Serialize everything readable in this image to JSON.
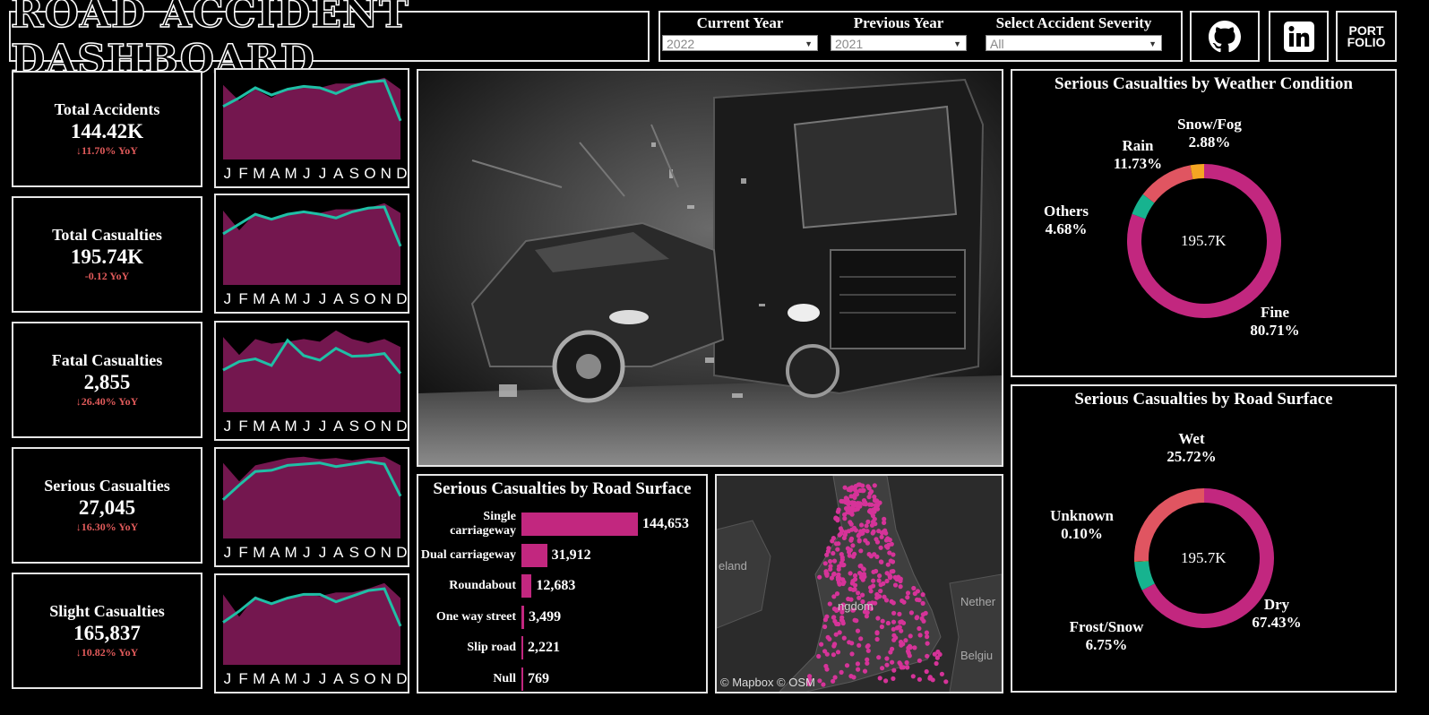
{
  "header": {
    "title": "ROAD ACCIDENT DASHBOARD",
    "filters": [
      {
        "label": "Current Year",
        "value": "2022"
      },
      {
        "label": "Previous Year",
        "value": "2021"
      },
      {
        "label": "Select Accident Severity",
        "value": "All"
      }
    ],
    "social": {
      "github_icon": "github-icon",
      "linkedin_icon": "linkedin-icon",
      "portfolio_line1": "PORT",
      "portfolio_line2": "FOLIO"
    }
  },
  "kpis": [
    {
      "name": "Total Accidents",
      "value": "144.42K",
      "yoy": "↓11.70% YoY"
    },
    {
      "name": "Total Casualties",
      "value": "195.74K",
      "yoy": "-0.12 YoY"
    },
    {
      "name": "Fatal Casualties",
      "value": "2,855",
      "yoy": "↓26.40% YoY"
    },
    {
      "name": "Serious Casualties",
      "value": "27,045",
      "yoy": "↓16.30% YoY"
    },
    {
      "name": "Slight Casualties",
      "value": "165,837",
      "yoy": "↓10.82% YoY"
    }
  ],
  "months": [
    "J",
    "F",
    "M",
    "A",
    "M",
    "J",
    "J",
    "A",
    "S",
    "O",
    "N",
    "D"
  ],
  "colors": {
    "accent": "#c2277f",
    "area": "#74174f",
    "line": "#1fbfa6",
    "others": "#17b38f",
    "rain": "#e05561",
    "snow": "#f5a623"
  },
  "chart_data": [
    {
      "type": "area",
      "name": "total-accidents-trend",
      "categories": [
        "J",
        "F",
        "M",
        "A",
        "M",
        "J",
        "J",
        "A",
        "S",
        "O",
        "N",
        "D"
      ],
      "series": [
        {
          "values": [
            12.5,
            11.4,
            12.2,
            11.6,
            12.3,
            12.4,
            12.3,
            12.6,
            12.6,
            12.7,
            13.0,
            12.2
          ]
        },
        {
          "values": [
            11.0,
            11.6,
            12.3,
            11.8,
            12.2,
            12.4,
            12.3,
            11.9,
            12.4,
            12.7,
            12.8,
            10.0
          ]
        }
      ]
    },
    {
      "type": "area",
      "name": "total-casualties-trend",
      "categories": [
        "J",
        "F",
        "M",
        "A",
        "M",
        "J",
        "J",
        "A",
        "S",
        "O",
        "N",
        "D"
      ],
      "series": [
        {
          "values": [
            16.8,
            15.2,
            16.6,
            16.0,
            16.6,
            16.7,
            16.6,
            16.9,
            16.9,
            17.0,
            17.4,
            16.6
          ]
        },
        {
          "values": [
            14.9,
            15.7,
            16.5,
            16.1,
            16.5,
            16.7,
            16.5,
            16.2,
            16.7,
            17.0,
            17.1,
            13.9
          ]
        }
      ]
    },
    {
      "type": "area",
      "name": "fatal-casualties-trend",
      "categories": [
        "J",
        "F",
        "M",
        "A",
        "M",
        "J",
        "J",
        "A",
        "S",
        "O",
        "N",
        "D"
      ],
      "series": [
        {
          "values": [
            265,
            238,
            262,
            255,
            258,
            262,
            258,
            275,
            262,
            256,
            262,
            250
          ]
        },
        {
          "values": [
            215,
            228,
            232,
            222,
            260,
            237,
            230,
            248,
            236,
            237,
            240,
            210
          ]
        }
      ]
    },
    {
      "type": "area",
      "name": "serious-casualties-trend",
      "categories": [
        "J",
        "F",
        "M",
        "A",
        "M",
        "J",
        "J",
        "A",
        "S",
        "O",
        "N",
        "D"
      ],
      "series": [
        {
          "values": [
            2450,
            2300,
            2430,
            2460,
            2490,
            2500,
            2480,
            2490,
            2470,
            2490,
            2500,
            2430
          ]
        },
        {
          "values": [
            2150,
            2270,
            2380,
            2390,
            2430,
            2440,
            2450,
            2420,
            2440,
            2460,
            2440,
            2180
          ]
        }
      ]
    },
    {
      "type": "area",
      "name": "slight-casualties-trend",
      "categories": [
        "J",
        "F",
        "M",
        "A",
        "M",
        "J",
        "J",
        "A",
        "S",
        "O",
        "N",
        "D"
      ],
      "series": [
        {
          "values": [
            14.3,
            13.1,
            14.2,
            13.8,
            14.1,
            14.3,
            14.2,
            14.4,
            14.4,
            14.6,
            14.9,
            14.1
          ]
        },
        {
          "values": [
            12.8,
            13.4,
            14.1,
            13.8,
            14.1,
            14.3,
            14.3,
            13.9,
            14.2,
            14.5,
            14.6,
            12.6
          ]
        }
      ]
    },
    {
      "type": "bar",
      "title": "Serious Casualties by Road Surface",
      "categories": [
        "Single carriageway",
        "Dual carriageway",
        "Roundabout",
        "One way street",
        "Slip road",
        "Null"
      ],
      "values": [
        144653,
        31912,
        12683,
        3499,
        2221,
        769
      ],
      "value_labels": [
        "144,653",
        "31,912",
        "12,683",
        "3,499",
        "2,221",
        "769"
      ]
    },
    {
      "type": "pie",
      "title": "Serious Casualties by Weather Condition",
      "center": "195.7K",
      "slices": [
        {
          "name": "Fine",
          "value": 80.71,
          "label": "80.71%",
          "color": "#c2277f"
        },
        {
          "name": "Others",
          "value": 4.68,
          "label": "4.68%",
          "color": "#17b38f"
        },
        {
          "name": "Rain",
          "value": 11.73,
          "label": "11.73%",
          "color": "#e05561"
        },
        {
          "name": "Snow/Fog",
          "value": 2.88,
          "label": "2.88%",
          "color": "#f5a623"
        }
      ]
    },
    {
      "type": "pie",
      "title": "Serious Casualties by Road Surface",
      "center": "195.7K",
      "slices": [
        {
          "name": "Dry",
          "value": 67.43,
          "label": "67.43%",
          "color": "#c2277f"
        },
        {
          "name": "Frost/Snow",
          "value": 6.75,
          "label": "6.75%",
          "color": "#17b38f"
        },
        {
          "name": "Unknown",
          "value": 0.1,
          "label": "0.10%",
          "color": "#f5a623"
        },
        {
          "name": "Wet",
          "value": 25.72,
          "label": "25.72%",
          "color": "#e05561"
        }
      ]
    }
  ],
  "map": {
    "credit": "© Mapbox © OSM",
    "labels": [
      "eland",
      "Nether",
      "Belgiu",
      "ngdom"
    ]
  }
}
